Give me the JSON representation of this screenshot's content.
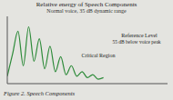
{
  "chart_data": {
    "type": "line",
    "title": "Relative energy of Speech Components",
    "subtitle": "Normal voice, 35 dB dynamic range",
    "annotations": [
      "Reference Level",
      "55 dB below voice peak",
      "Critical Region"
    ],
    "caption": "Figure 2. Speech Components",
    "x": [
      0,
      5,
      10,
      15,
      20,
      25,
      30,
      35,
      40,
      45,
      50,
      55,
      60,
      65,
      70,
      75,
      80,
      85,
      90
    ],
    "values": [
      5,
      20,
      35,
      12,
      38,
      15,
      30,
      10,
      25,
      8,
      18,
      6,
      12,
      5,
      8,
      4,
      6,
      3,
      4
    ],
    "color": "#2e8b3a",
    "xlim": [
      0,
      150
    ],
    "ylim": [
      0,
      45
    ],
    "tick_labels": false,
    "grid": false
  }
}
